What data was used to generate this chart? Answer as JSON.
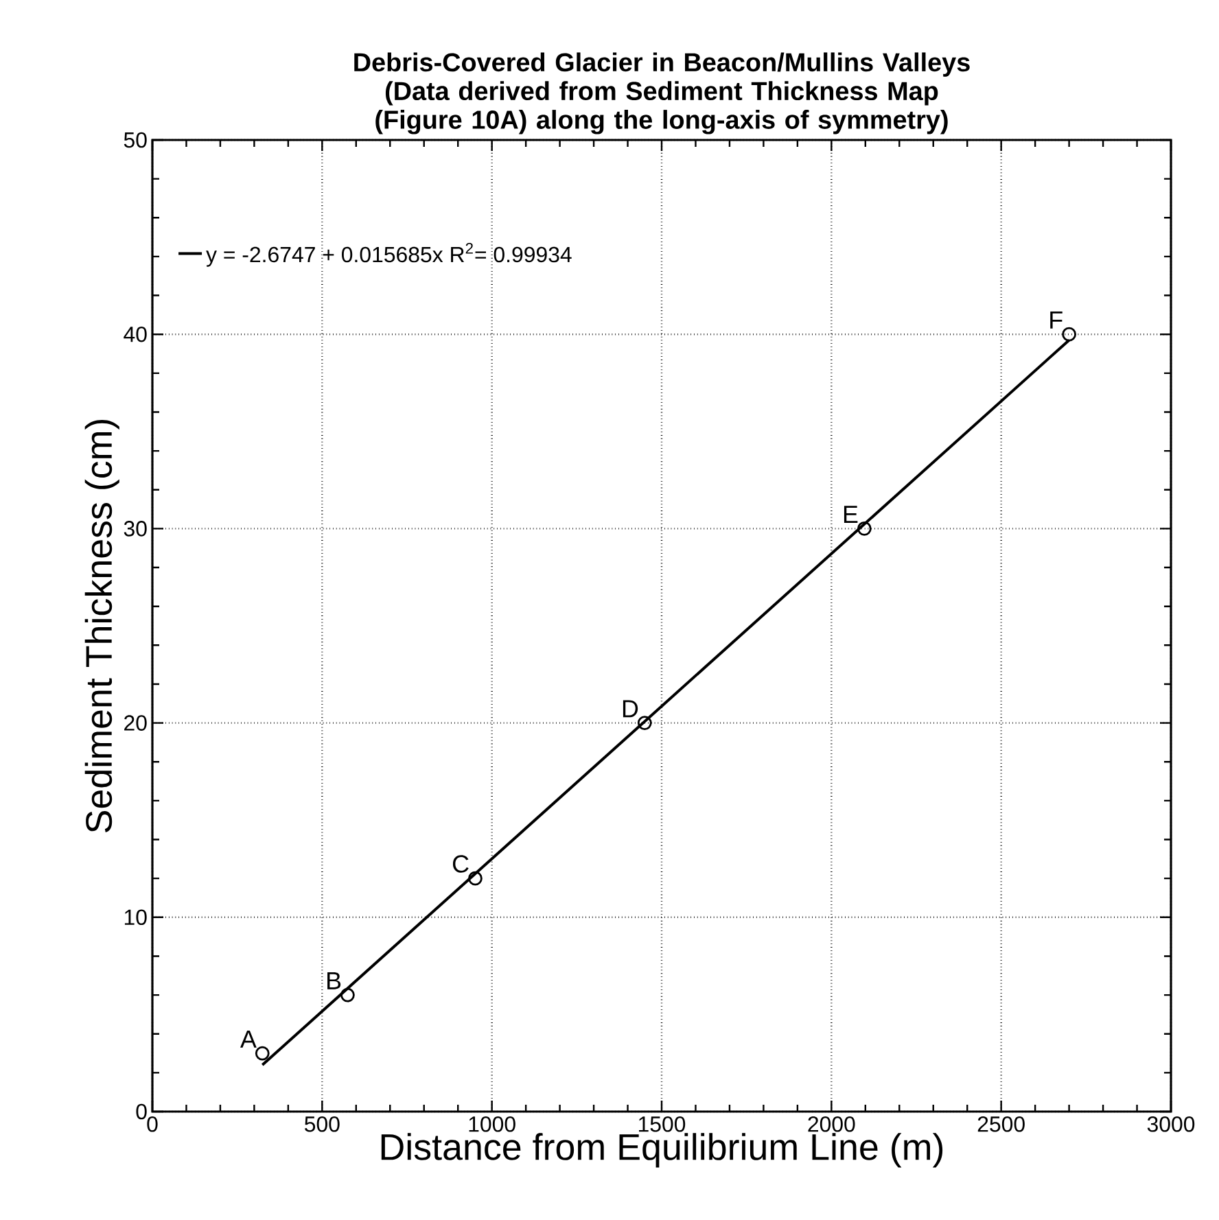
{
  "chart_data": {
    "type": "scatter",
    "title": "Debris-Covered Glacier in Beacon/Mullins Valleys",
    "subtitle": "(Data derived from Sediment Thickness Map (Figure 10A) along the long-axis of symmetry)",
    "xlabel": "Distance from Equilibrium Line (m)",
    "ylabel": "Sediment Thickness (cm)",
    "series": [
      {
        "type": "scatter",
        "color": "#000000",
        "marker": "circle",
        "x": [
          324,
          575,
          951,
          1450,
          2097,
          2700
        ],
        "values": [
          3,
          6,
          12,
          20,
          30,
          40
        ]
      },
      {
        "type": "line",
        "name": "y = -2.6747 + 0.015685x R$^{2}$= 0.99934",
        "color": "#000000",
        "marker": "none",
        "line_style": "solid",
        "x": [
          324,
          2700
        ],
        "values": [
          2.4,
          39.7
        ]
      }
    ],
    "annotations": [
      {
        "text": "A",
        "x": 324,
        "y": 3
      },
      {
        "text": "B",
        "x": 575,
        "y": 6
      },
      {
        "text": "C",
        "x": 951,
        "y": 12
      },
      {
        "text": "D",
        "x": 1450,
        "y": 20
      },
      {
        "text": "E",
        "x": 2097,
        "y": 30
      },
      {
        "text": "F",
        "x": 2700,
        "y": 40
      }
    ],
    "xlim": [
      0,
      3000
    ],
    "ylim": [
      0,
      50
    ],
    "xticks": [
      0,
      500,
      1000,
      1500,
      2000,
      2500,
      3000
    ],
    "yticks": [
      0,
      10,
      20,
      30,
      40,
      50
    ],
    "grid": true,
    "legend": "top left"
  }
}
